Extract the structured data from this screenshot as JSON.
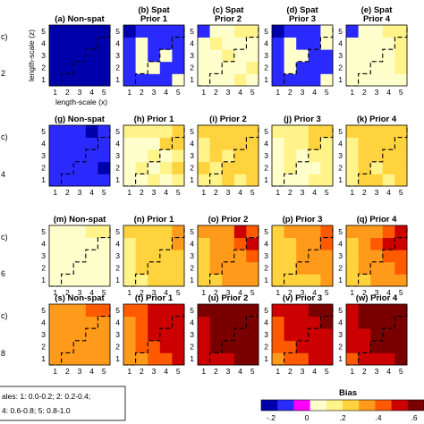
{
  "chart_data": {
    "type": "heatmap",
    "ticks": [
      "1",
      "2",
      "3",
      "4",
      "5"
    ],
    "xlabel": "length-scale (x)",
    "ylabel": "length-scale (z)",
    "panels": [
      {
        "title": "(a) Non-spat",
        "values": [
          [
            -0.2,
            -0.2,
            -0.2,
            -0.2,
            -0.2
          ],
          [
            -0.2,
            -0.2,
            -0.2,
            -0.2,
            -0.2
          ],
          [
            -0.2,
            -0.2,
            -0.2,
            -0.2,
            -0.2
          ],
          [
            -0.2,
            -0.2,
            -0.2,
            -0.2,
            -0.2
          ],
          [
            -0.2,
            -0.2,
            -0.2,
            -0.2,
            -0.2
          ]
        ]
      },
      {
        "title": "(b) Spat Prior 1",
        "values": [
          [
            -0.1,
            -0.1,
            -0.1,
            -0.1,
            0.07
          ],
          [
            -0.1,
            0.06,
            0.06,
            -0.1,
            -0.1
          ],
          [
            -0.1,
            0.06,
            -0.1,
            0.06,
            -0.1
          ],
          [
            -0.1,
            0.06,
            -0.1,
            -0.1,
            -0.1
          ],
          [
            -0.2,
            -0.1,
            -0.1,
            -0.1,
            -0.1
          ]
        ]
      },
      {
        "title": "(c) Spat Prior 2",
        "values": [
          [
            0.1,
            0.07,
            0.1,
            0.13,
            0.05
          ],
          [
            0.1,
            0.07,
            0.1,
            0.08,
            0.13
          ],
          [
            0.07,
            0.07,
            0.13,
            0.1,
            0.12
          ],
          [
            0.06,
            0.13,
            0.1,
            0.11,
            0.1
          ],
          [
            -0.1,
            0.1,
            0.1,
            0.13,
            0.13
          ]
        ]
      },
      {
        "title": "(d) Spat Prior 3",
        "values": [
          [
            -0.1,
            -0.1,
            -0.1,
            -0.1,
            0.07
          ],
          [
            -0.1,
            0.07,
            -0.1,
            -0.1,
            -0.1
          ],
          [
            -0.1,
            0.06,
            0.07,
            -0.1,
            -0.1
          ],
          [
            -0.1,
            0.07,
            -0.1,
            -0.1,
            0.1
          ],
          [
            -0.2,
            -0.1,
            -0.1,
            -0.1,
            0.1
          ]
        ]
      },
      {
        "title": "(e) Spat Prior 4",
        "values": [
          [
            0.1,
            0.07,
            0.1,
            0.1,
            0.06
          ],
          [
            0.06,
            0.1,
            0.06,
            0.1,
            0.13
          ],
          [
            0.1,
            0.12,
            0.06,
            0.1,
            0.13
          ],
          [
            0.06,
            0.1,
            0.1,
            0.1,
            0.13
          ],
          [
            -0.1,
            0.12,
            0.1,
            0.13,
            0.13
          ]
        ]
      },
      {
        "title": "(g) Non-spat",
        "values": [
          [
            -0.1,
            -0.1,
            -0.1,
            -0.1,
            -0.1
          ],
          [
            -0.1,
            -0.1,
            -0.1,
            -0.1,
            -0.2
          ],
          [
            -0.1,
            -0.1,
            -0.1,
            -0.1,
            -0.1
          ],
          [
            -0.1,
            -0.1,
            -0.1,
            -0.1,
            -0.1
          ],
          [
            -0.1,
            -0.1,
            -0.1,
            -0.2,
            -0.1
          ]
        ]
      },
      {
        "title": "(h) Prior 1",
        "values": [
          [
            0.1,
            0.1,
            0.13,
            0.1,
            0.13
          ],
          [
            0.12,
            0.13,
            0.07,
            0.16,
            0.2
          ],
          [
            0.1,
            0.1,
            0.13,
            0.1,
            0.17
          ],
          [
            0.1,
            0.12,
            0.06,
            0.2,
            0.2
          ],
          [
            0.13,
            0.13,
            0.13,
            0.13,
            0.2
          ]
        ]
      },
      {
        "title": "(i) Prior 2",
        "values": [
          [
            0.13,
            0.13,
            0.2,
            0.13,
            0.2
          ],
          [
            0.2,
            0.17,
            0.26,
            0.23,
            0.2
          ],
          [
            0.13,
            0.2,
            0.17,
            0.23,
            0.26
          ],
          [
            0.13,
            0.2,
            0.25,
            0.27,
            0.25
          ],
          [
            0.2,
            0.2,
            0.2,
            0.22,
            0.25
          ]
        ]
      },
      {
        "title": "(j) Prior 3",
        "values": [
          [
            0.1,
            0.1,
            0.1,
            0.13,
            0.17
          ],
          [
            0.1,
            0.13,
            0.1,
            0.1,
            0.13
          ],
          [
            0.1,
            0.13,
            0.12,
            0.17,
            0.17
          ],
          [
            0.1,
            0.13,
            0.17,
            0.2,
            0.13
          ],
          [
            0.13,
            0.17,
            0.13,
            0.2,
            0.2
          ]
        ]
      },
      {
        "title": "(k) Prior 4",
        "values": [
          [
            0.13,
            0.2,
            0.2,
            0.13,
            0.2
          ],
          [
            0.16,
            0.2,
            0.17,
            0.2,
            0.25
          ],
          [
            0.13,
            0.2,
            0.2,
            0.27,
            0.2
          ],
          [
            0.16,
            0.2,
            0.25,
            0.25,
            0.27
          ],
          [
            0.2,
            0.2,
            0.2,
            0.22,
            0.27
          ]
        ]
      },
      {
        "title": "(m) Non-spat",
        "values": [
          [
            0.1,
            0.1,
            0.1,
            0.1,
            0.1
          ],
          [
            0.1,
            0.1,
            0.1,
            0.1,
            0.1
          ],
          [
            0.1,
            0.1,
            0.12,
            0.06,
            0.1
          ],
          [
            0.1,
            0.1,
            0.1,
            0.06,
            0.1
          ],
          [
            0.1,
            0.1,
            0.1,
            0.13,
            0.13
          ]
        ]
      },
      {
        "title": "(n) Prior 1",
        "values": [
          [
            0.13,
            0.13,
            0.2,
            0.2,
            0.2
          ],
          [
            0.13,
            0.2,
            0.2,
            0.25,
            0.27
          ],
          [
            0.13,
            0.2,
            0.25,
            0.2,
            0.27
          ],
          [
            0.13,
            0.2,
            0.2,
            0.27,
            0.3
          ],
          [
            0.2,
            0.2,
            0.25,
            0.27,
            0.3
          ]
        ]
      },
      {
        "title": "(o) Prior 2",
        "values": [
          [
            0.2,
            0.25,
            0.3,
            0.3,
            0.3
          ],
          [
            0.2,
            0.3,
            0.35,
            0.35,
            0.3
          ],
          [
            0.2,
            0.3,
            0.35,
            0.35,
            0.4
          ],
          [
            0.25,
            0.35,
            0.3,
            0.42,
            0.45
          ],
          [
            0.3,
            0.35,
            0.35,
            0.45,
            0.4
          ]
        ]
      },
      {
        "title": "(p) Prior 3",
        "values": [
          [
            0.2,
            0.2,
            0.25,
            0.25,
            0.3
          ],
          [
            0.2,
            0.25,
            0.3,
            0.3,
            0.35
          ],
          [
            0.2,
            0.25,
            0.3,
            0.35,
            0.35
          ],
          [
            0.2,
            0.25,
            0.3,
            0.35,
            0.4
          ],
          [
            0.25,
            0.3,
            0.35,
            0.35,
            0.4
          ]
        ]
      },
      {
        "title": "(q) Prior 4",
        "values": [
          [
            0.2,
            0.25,
            0.3,
            0.3,
            0.35
          ],
          [
            0.2,
            0.3,
            0.3,
            0.35,
            0.4
          ],
          [
            0.25,
            0.3,
            0.35,
            0.4,
            0.4
          ],
          [
            0.25,
            0.35,
            0.4,
            0.5,
            0.45
          ],
          [
            0.3,
            0.35,
            0.35,
            0.4,
            0.45
          ]
        ]
      },
      {
        "title": "(s) Non-spat",
        "values": [
          [
            0.3,
            0.3,
            0.3,
            0.3,
            0.3
          ],
          [
            0.3,
            0.35,
            0.35,
            0.35,
            0.3
          ],
          [
            0.3,
            0.35,
            0.35,
            0.35,
            0.35
          ],
          [
            0.3,
            0.35,
            0.35,
            0.35,
            0.35
          ],
          [
            0.35,
            0.35,
            0.35,
            0.4,
            0.4
          ]
        ]
      },
      {
        "title": "(t) Prior 1",
        "values": [
          [
            0.35,
            0.35,
            0.4,
            0.4,
            0.45
          ],
          [
            0.35,
            0.4,
            0.4,
            0.45,
            0.45
          ],
          [
            0.35,
            0.4,
            0.45,
            0.45,
            0.45
          ],
          [
            0.35,
            0.4,
            0.45,
            0.5,
            0.5
          ],
          [
            0.4,
            0.4,
            0.45,
            0.5,
            0.5
          ]
        ]
      },
      {
        "title": "(u) Prior 2",
        "values": [
          [
            0.45,
            0.5,
            0.5,
            0.55,
            0.55
          ],
          [
            0.45,
            0.55,
            0.55,
            0.6,
            0.6
          ],
          [
            0.5,
            0.55,
            0.6,
            0.6,
            0.6
          ],
          [
            0.5,
            0.55,
            0.6,
            0.6,
            0.6
          ],
          [
            0.55,
            0.55,
            0.6,
            0.6,
            0.6
          ]
        ]
      },
      {
        "title": "(v) Prior 3",
        "values": [
          [
            0.35,
            0.4,
            0.4,
            0.45,
            0.45
          ],
          [
            0.4,
            0.4,
            0.45,
            0.45,
            0.5
          ],
          [
            0.4,
            0.45,
            0.45,
            0.5,
            0.5
          ],
          [
            0.4,
            0.45,
            0.5,
            0.5,
            0.55
          ],
          [
            0.45,
            0.45,
            0.5,
            0.55,
            0.55
          ]
        ]
      },
      {
        "title": "(w) Prior 4",
        "values": [
          [
            0.4,
            0.45,
            0.5,
            0.5,
            0.55
          ],
          [
            0.45,
            0.5,
            0.55,
            0.55,
            0.6
          ],
          [
            0.45,
            0.5,
            0.55,
            0.6,
            0.6
          ],
          [
            0.5,
            0.55,
            0.6,
            0.6,
            0.6
          ],
          [
            0.5,
            0.55,
            0.6,
            0.6,
            0.6
          ]
        ]
      }
    ],
    "colorbar": {
      "label": "Bias",
      "ticks": [
        "-.2",
        "0",
        ".2",
        ".4",
        ".6"
      ],
      "range": [
        -0.2,
        0.6
      ],
      "colors": [
        "#0000aa",
        "#2a2aff",
        "#ff00ff",
        "#ffffcc",
        "#fff38a",
        "#ffd33d",
        "#ff9a1a",
        "#ff5a00",
        "#cc0000",
        "#7a0000"
      ]
    },
    "legend_box": [
      "ales: 1: 0.0-0.2; 2: 0.2-0.4;",
      "4: 0.6-0.8; 5: 0.8-1.0"
    ],
    "edge_labels": [
      "c)",
      "2",
      "c)",
      "4",
      "c)",
      "6",
      "c)",
      "8"
    ]
  }
}
